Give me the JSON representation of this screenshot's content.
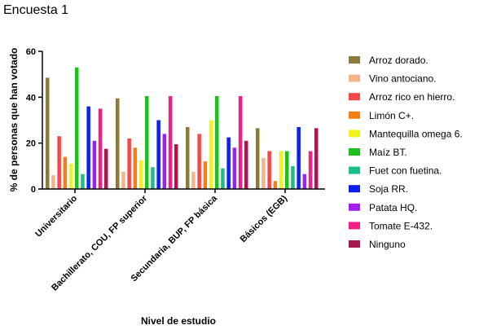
{
  "chart_data": {
    "type": "bar",
    "title": "Encuesta 1",
    "xlabel": "Nivel de estudio",
    "ylabel": "% de personas que han votado",
    "ylim": [
      0,
      60
    ],
    "yticks": [
      "0",
      "20",
      "40",
      "60"
    ],
    "categories": [
      "Universitario",
      "Bachillerato, COU, FP superior",
      "Secundaria, BUP, FP básica",
      "Básicos (EGB)"
    ],
    "legend_position": "right",
    "grid": false,
    "series": [
      {
        "name": "Arroz dorado.",
        "color": "#8c7a3b",
        "values": [
          48.5,
          39.5,
          27,
          26.5
        ]
      },
      {
        "name": "Vino antociano.",
        "color": "#f2b48a",
        "values": [
          6,
          7.5,
          7.5,
          13.5
        ]
      },
      {
        "name": "Arroz rico en hierro.",
        "color": "#f24848",
        "values": [
          23,
          22,
          24,
          16.5
        ]
      },
      {
        "name": "Limón C+.",
        "color": "#f57f17",
        "values": [
          14,
          18,
          12,
          3.5
        ]
      },
      {
        "name": "Mantequilla omega 6.",
        "color": "#f2f21f",
        "values": [
          11,
          12.5,
          30,
          16.5
        ]
      },
      {
        "name": "Maíz BT.",
        "color": "#1fbf1f",
        "values": [
          53,
          40.5,
          40.5,
          16.5
        ]
      },
      {
        "name": "Fuet con fuetina.",
        "color": "#19bf86",
        "values": [
          6.5,
          9.5,
          9,
          10
        ]
      },
      {
        "name": "Soja RR.",
        "color": "#0f1ff2",
        "values": [
          36,
          30,
          22.5,
          27
        ]
      },
      {
        "name": "Patata HQ.",
        "color": "#a01ff2",
        "values": [
          21,
          24,
          18,
          6.5
        ]
      },
      {
        "name": "Tomate E-432.",
        "color": "#f21f86",
        "values": [
          35,
          40.5,
          40.5,
          16.5
        ]
      },
      {
        "name": "Ninguno",
        "color": "#a6194d",
        "values": [
          17.5,
          19.5,
          21,
          26.5
        ]
      }
    ]
  }
}
